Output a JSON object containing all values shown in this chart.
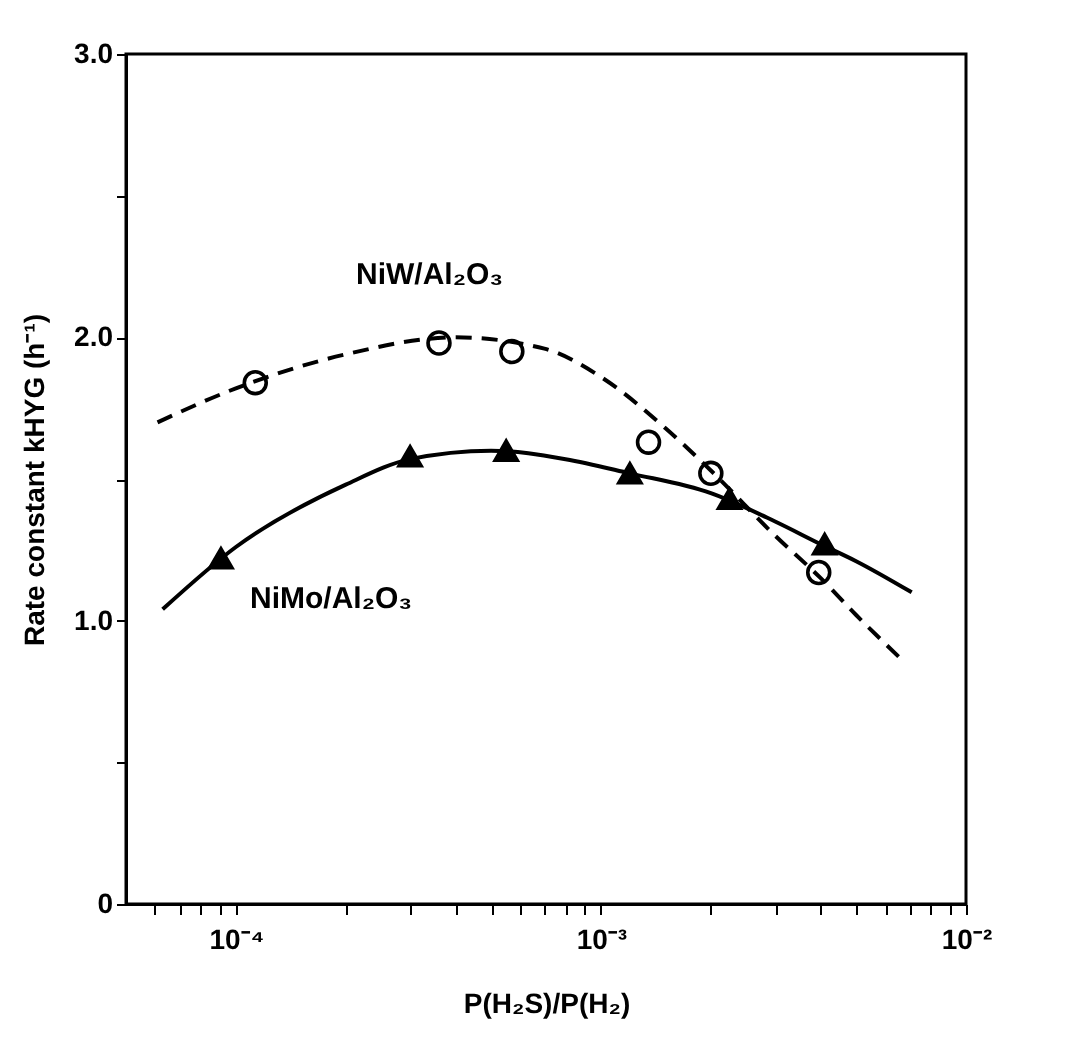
{
  "chart_data": {
    "type": "scatter",
    "xlabel": "P(H₂S)/P(H₂)",
    "ylabel": "Rate constant  kHYG (h⁻¹)",
    "log": "x",
    "grid": false,
    "legend": false,
    "xlim": [
      5e-05,
      0.01
    ],
    "xticks": [
      {
        "value": 6e-05,
        "label": null
      },
      {
        "value": 7e-05,
        "label": null
      },
      {
        "value": 8e-05,
        "label": null
      },
      {
        "value": 9e-05,
        "label": null
      },
      {
        "value": 0.0001,
        "label": "10⁻⁴"
      },
      {
        "value": 0.0002,
        "label": null
      },
      {
        "value": 0.0003,
        "label": null
      },
      {
        "value": 0.0004,
        "label": null
      },
      {
        "value": 0.0005,
        "label": null
      },
      {
        "value": 0.0006,
        "label": null
      },
      {
        "value": 0.0007,
        "label": null
      },
      {
        "value": 0.0008,
        "label": null
      },
      {
        "value": 0.0009,
        "label": null
      },
      {
        "value": 0.001,
        "label": "10⁻³"
      },
      {
        "value": 0.002,
        "label": null
      },
      {
        "value": 0.003,
        "label": null
      },
      {
        "value": 0.004,
        "label": null
      },
      {
        "value": 0.005,
        "label": null
      },
      {
        "value": 0.006,
        "label": null
      },
      {
        "value": 0.007,
        "label": null
      },
      {
        "value": 0.008,
        "label": null
      },
      {
        "value": 0.009,
        "label": null
      },
      {
        "value": 0.01,
        "label": "10⁻²"
      }
    ],
    "ylim": [
      0,
      3
    ],
    "yticks": [
      {
        "value": 0,
        "label": "0"
      },
      {
        "value": 0.5,
        "label": null
      },
      {
        "value": 1,
        "label": "1.0"
      },
      {
        "value": 1.5,
        "label": null
      },
      {
        "value": 2,
        "label": "2.0"
      },
      {
        "value": 2.5,
        "label": null
      },
      {
        "value": 3,
        "label": "3.0"
      }
    ],
    "series": [
      {
        "name": "NiW/Al₂O₃",
        "marker": "circle",
        "color": "#000000",
        "x": [
          0.000113,
          0.00036,
          0.00057,
          0.00135,
          0.002,
          0.00395
        ],
        "values": [
          1.84,
          1.98,
          1.95,
          1.63,
          1.52,
          1.17
        ]
      },
      {
        "name": "NiMo/Al₂O₃",
        "marker": "triangle",
        "color": "#000000",
        "x": [
          9.1e-05,
          0.0003,
          0.00055,
          0.0012,
          0.00225,
          0.0041
        ],
        "values": [
          1.22,
          1.58,
          1.6,
          1.52,
          1.43,
          1.27
        ]
      },
      {
        "type": "line",
        "line_style": "dashed",
        "color": "#000000",
        "x": [
          6.1e-05,
          0.0001,
          0.0002,
          0.0004,
          0.0007,
          0.001,
          0.0015,
          0.002,
          0.003,
          0.004,
          0.005,
          0.0067
        ],
        "values": [
          1.7,
          1.82,
          1.94,
          2.0,
          1.96,
          1.86,
          1.68,
          1.53,
          1.3,
          1.15,
          1.02,
          0.86
        ]
      },
      {
        "type": "line",
        "line_style": "solid",
        "color": "#000000",
        "x": [
          6.3e-05,
          0.0001,
          0.0002,
          0.0003,
          0.0005,
          0.0008,
          0.0012,
          0.002,
          0.003,
          0.004,
          0.005,
          0.0071
        ],
        "values": [
          1.04,
          1.26,
          1.48,
          1.57,
          1.6,
          1.57,
          1.52,
          1.45,
          1.35,
          1.27,
          1.21,
          1.1
        ]
      }
    ]
  }
}
